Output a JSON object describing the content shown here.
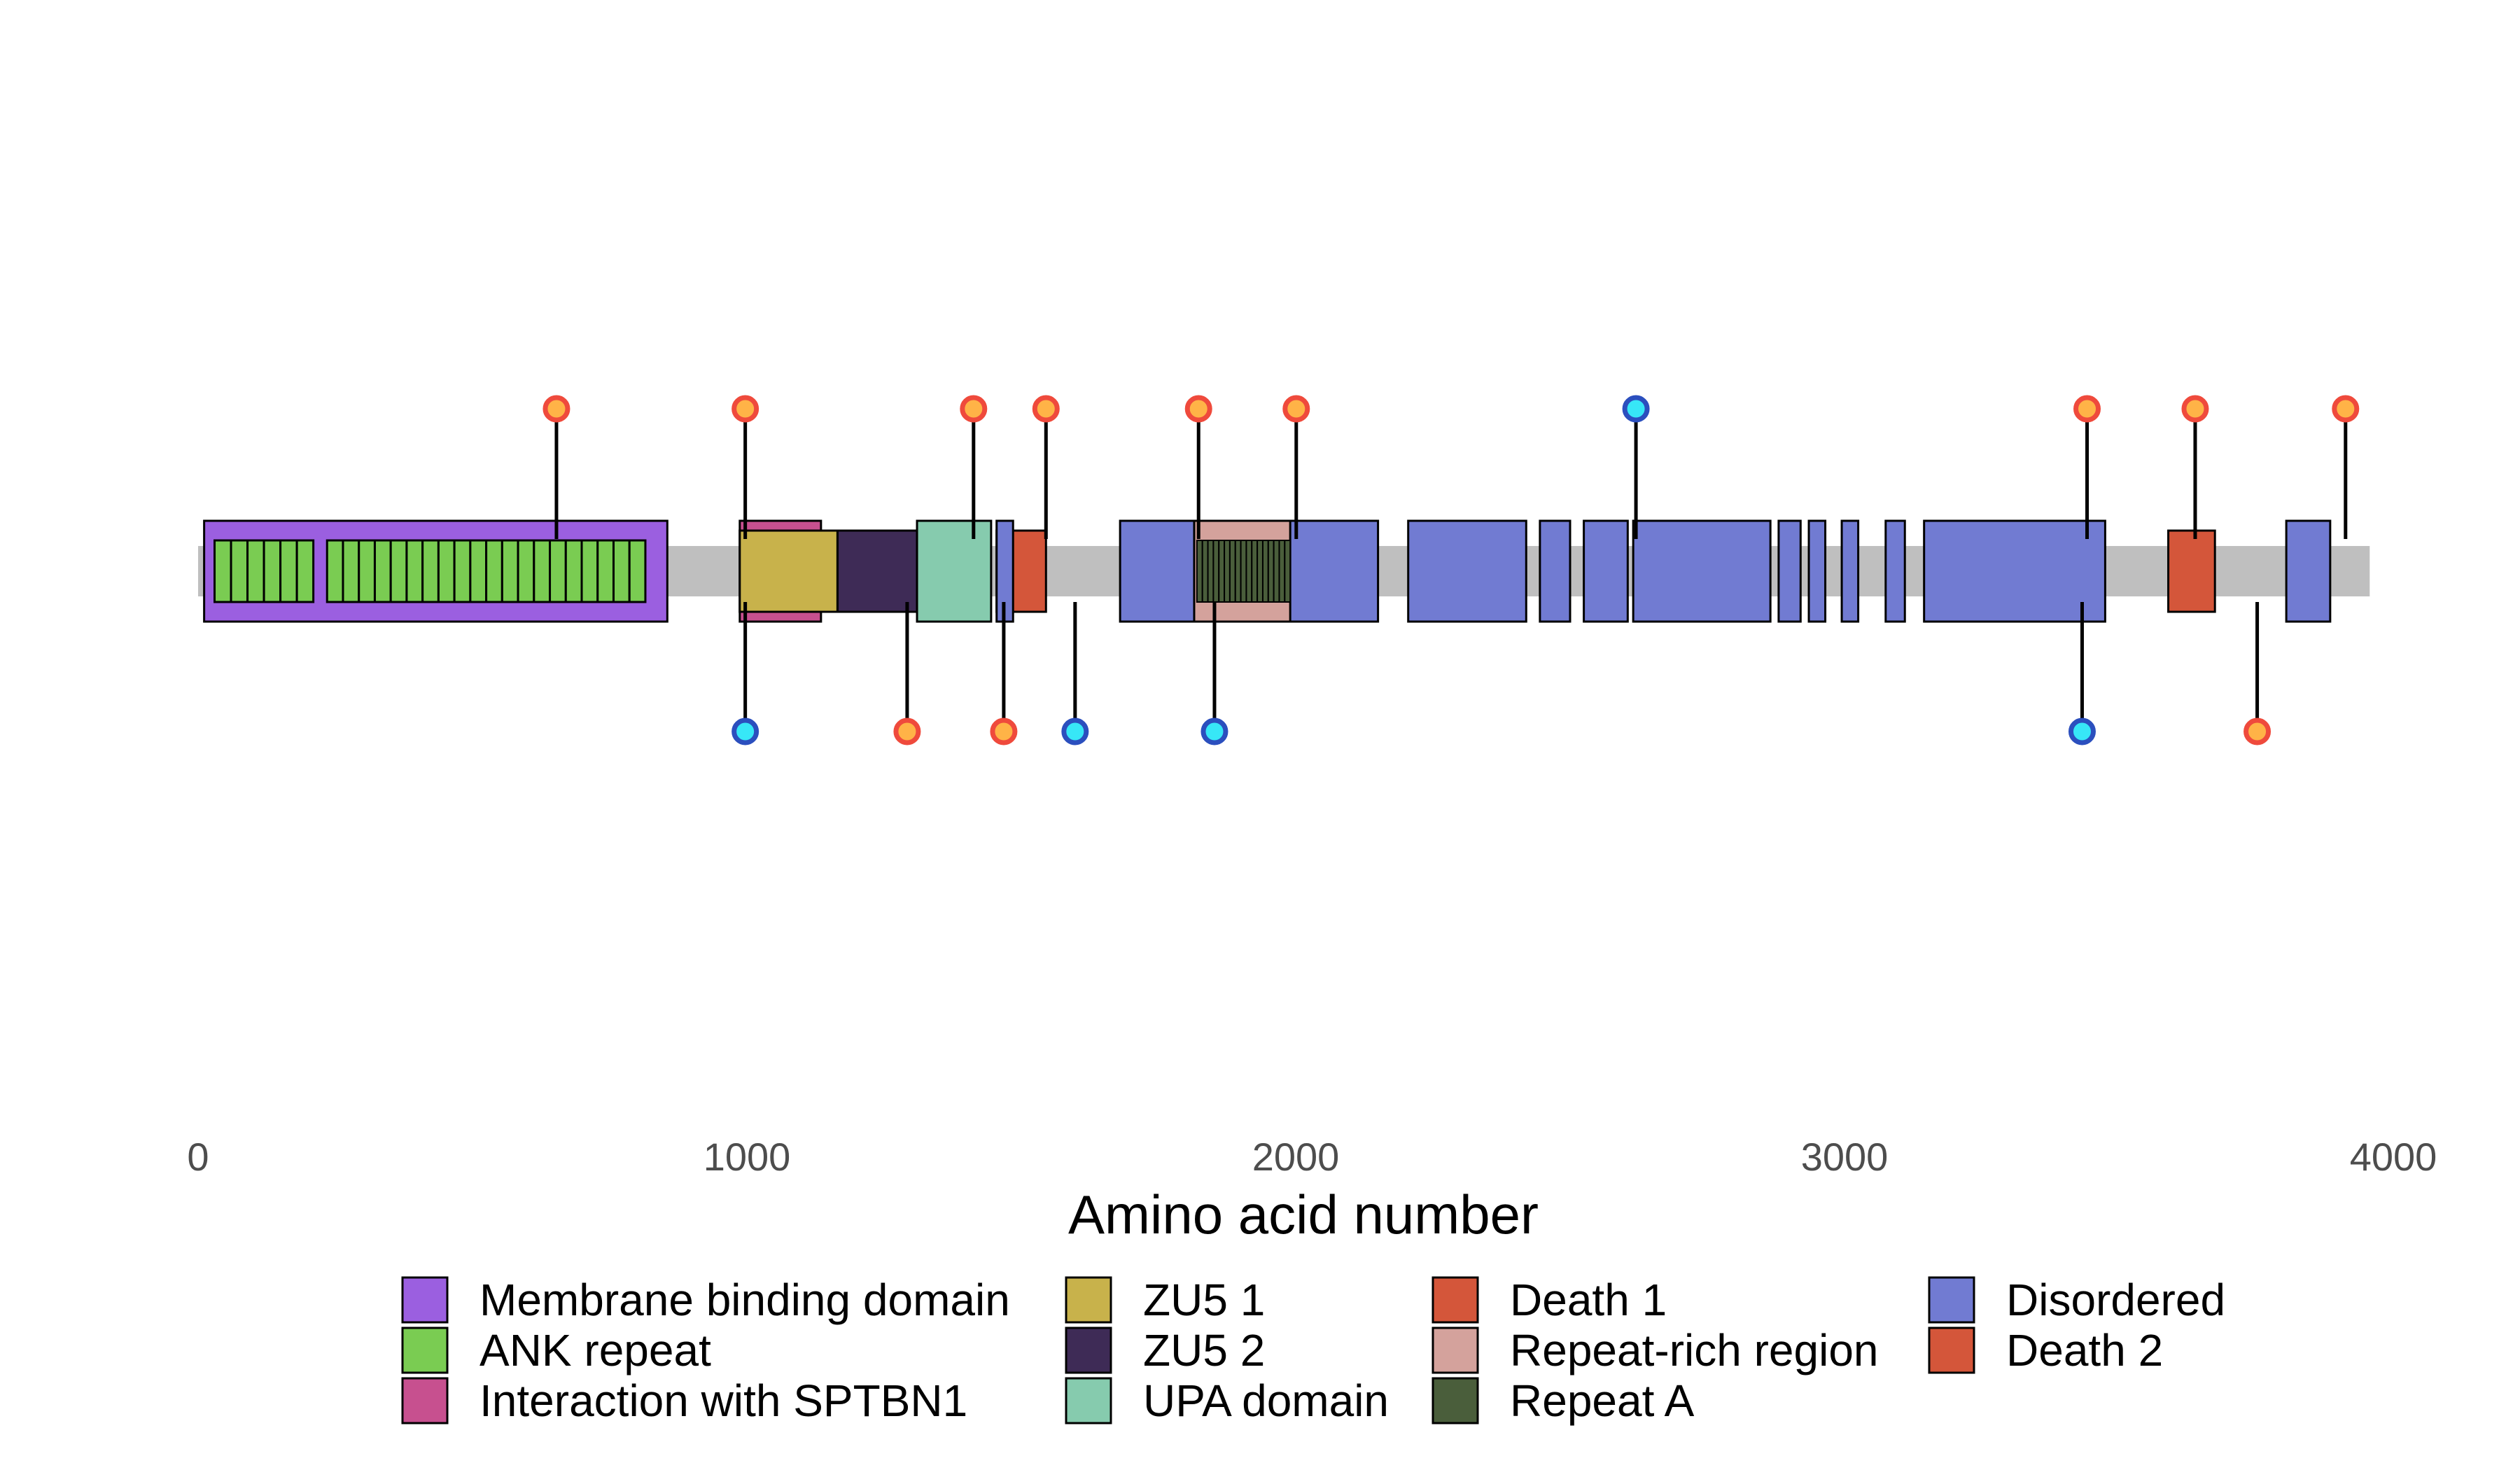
{
  "chart_data": {
    "type": "protein-domain-lollipop",
    "xlabel": "Amino acid number",
    "xlim": [
      0,
      4000
    ],
    "x_ticks": [
      0,
      1000,
      2000,
      3000,
      4000
    ],
    "x_tick_labels": [
      "0",
      "1000",
      "2000",
      "3000",
      "4000"
    ],
    "protein_length": 3957,
    "grid": false,
    "legend_position": "bottom",
    "colors": {
      "backbone": "#bfbfbf",
      "Membrane binding domain": "#9b5fe0",
      "ANK repeat": "#7acc52",
      "Interaction with SPTBN1": "#c7508f",
      "ZU5 1": "#c8b24b",
      "ZU5 2": "#3e2b56",
      "UPA domain": "#86cbae",
      "Death 1": "#d4563a",
      "Repeat-rich region": "#d4a29c",
      "Repeat A": "#4a5e3b",
      "Disordered": "#717bd2",
      "Death 2": "#d4563a",
      "marker_orange_fill": "#ffb347",
      "marker_orange_stroke": "#ef4a3c",
      "marker_cyan_fill": "#37e7f7",
      "marker_cyan_stroke": "#2b4fbe"
    },
    "legend": [
      "Membrane binding domain",
      "ANK repeat",
      "Interaction with SPTBN1",
      "ZU5 1",
      "ZU5 2",
      "UPA domain",
      "Death 1",
      "Repeat-rich region",
      "Repeat A",
      "Disordered",
      "Death 2"
    ],
    "domains": [
      {
        "type": "Membrane binding domain",
        "start": 11,
        "end": 855
      },
      {
        "type": "Interaction with SPTBN1",
        "start": 987,
        "end": 1135
      },
      {
        "type": "ZU5 1",
        "start": 987,
        "end": 1165
      },
      {
        "type": "ZU5 2",
        "start": 1165,
        "end": 1310
      },
      {
        "type": "UPA domain",
        "start": 1310,
        "end": 1445
      },
      {
        "type": "Death 1",
        "start": 1455,
        "end": 1545
      },
      {
        "type": "Disordered",
        "start": 1455,
        "end": 1485
      },
      {
        "type": "Disordered",
        "start": 1680,
        "end": 2150
      },
      {
        "type": "Repeat-rich region",
        "start": 1815,
        "end": 1990
      },
      {
        "type": "Disordered",
        "start": 2205,
        "end": 2420
      },
      {
        "type": "Disordered",
        "start": 2445,
        "end": 2500
      },
      {
        "type": "Disordered",
        "start": 2525,
        "end": 2605
      },
      {
        "type": "Disordered",
        "start": 2615,
        "end": 2865
      },
      {
        "type": "Disordered",
        "start": 2880,
        "end": 2920
      },
      {
        "type": "Disordered",
        "start": 2935,
        "end": 2965
      },
      {
        "type": "Disordered",
        "start": 2995,
        "end": 3025
      },
      {
        "type": "Disordered",
        "start": 3075,
        "end": 3110
      },
      {
        "type": "Disordered",
        "start": 3145,
        "end": 3475
      },
      {
        "type": "Death 2",
        "start": 3590,
        "end": 3675
      },
      {
        "type": "Disordered",
        "start": 3805,
        "end": 3885
      }
    ],
    "ank_repeats": [
      [
        30,
        60
      ],
      [
        60,
        90
      ],
      [
        90,
        120
      ],
      [
        120,
        150
      ],
      [
        150,
        180
      ],
      [
        180,
        210
      ],
      [
        235,
        264
      ],
      [
        264,
        293
      ],
      [
        293,
        322
      ],
      [
        322,
        351
      ],
      [
        351,
        380
      ],
      [
        380,
        409
      ],
      [
        409,
        438
      ],
      [
        438,
        467
      ],
      [
        467,
        496
      ],
      [
        496,
        525
      ],
      [
        525,
        554
      ],
      [
        554,
        583
      ],
      [
        583,
        612
      ],
      [
        612,
        641
      ],
      [
        641,
        670
      ],
      [
        670,
        699
      ],
      [
        699,
        728
      ],
      [
        728,
        757
      ],
      [
        757,
        786
      ],
      [
        786,
        815
      ]
    ],
    "repeat_a": [
      [
        1820,
        1830
      ],
      [
        1830,
        1840
      ],
      [
        1840,
        1850
      ],
      [
        1850,
        1860
      ],
      [
        1860,
        1870
      ],
      [
        1870,
        1880
      ],
      [
        1880,
        1890
      ],
      [
        1890,
        1900
      ],
      [
        1900,
        1910
      ],
      [
        1910,
        1920
      ],
      [
        1920,
        1930
      ],
      [
        1930,
        1940
      ],
      [
        1940,
        1950
      ],
      [
        1950,
        1960
      ],
      [
        1960,
        1970
      ],
      [
        1970,
        1980
      ],
      [
        1980,
        1990
      ]
    ],
    "variants_above": [
      {
        "pos": 653,
        "class": "orange"
      },
      {
        "pos": 997,
        "class": "orange"
      },
      {
        "pos": 1413,
        "class": "orange"
      },
      {
        "pos": 1545,
        "class": "orange"
      },
      {
        "pos": 1823,
        "class": "orange"
      },
      {
        "pos": 2001,
        "class": "orange"
      },
      {
        "pos": 2620,
        "class": "cyan"
      },
      {
        "pos": 3442,
        "class": "orange"
      },
      {
        "pos": 3639,
        "class": "orange"
      },
      {
        "pos": 3913,
        "class": "orange"
      }
    ],
    "variants_below": [
      {
        "pos": 997,
        "class": "cyan"
      },
      {
        "pos": 1292,
        "class": "orange"
      },
      {
        "pos": 1468,
        "class": "orange"
      },
      {
        "pos": 1598,
        "class": "cyan"
      },
      {
        "pos": 1852,
        "class": "cyan"
      },
      {
        "pos": 3433,
        "class": "cyan"
      },
      {
        "pos": 3752,
        "class": "orange"
      }
    ]
  }
}
